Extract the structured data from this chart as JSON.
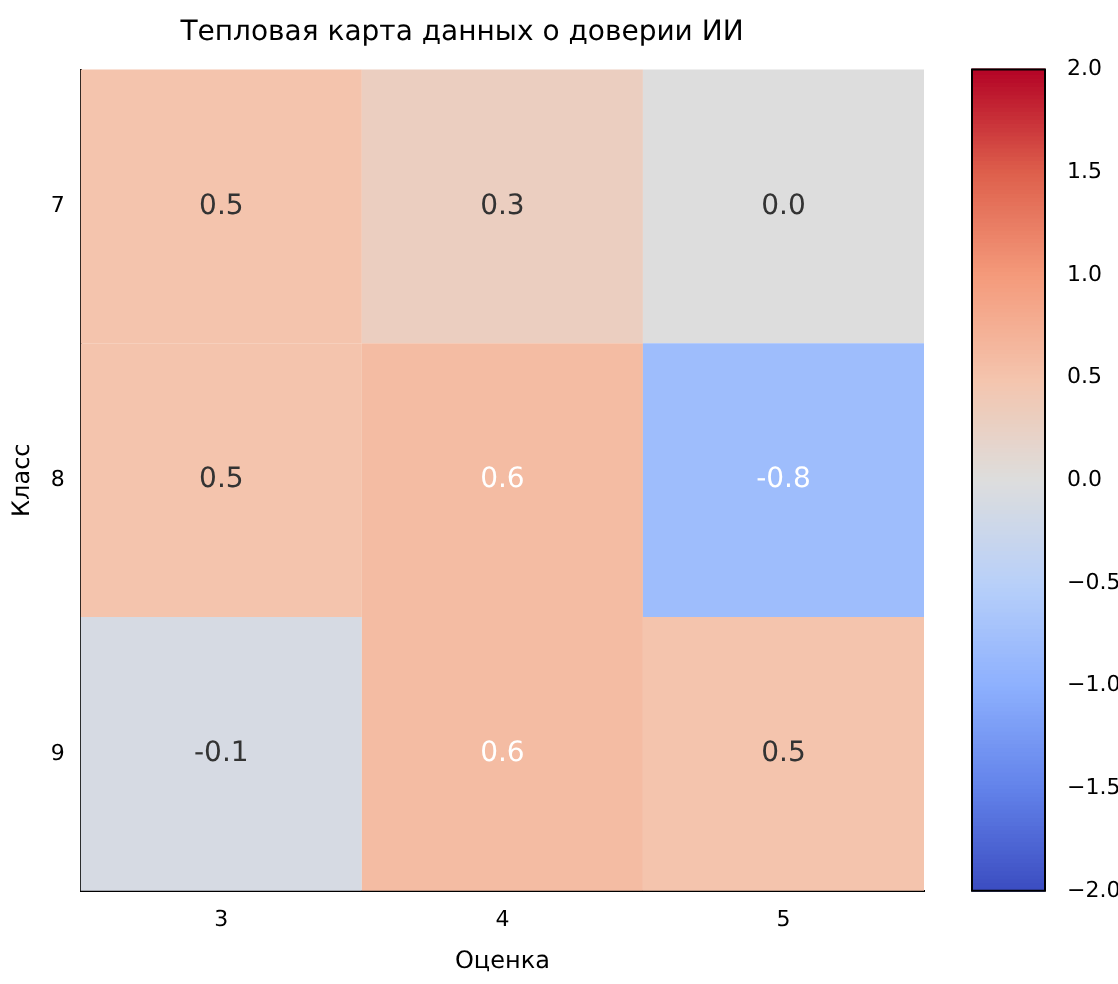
{
  "chart_data": {
    "type": "heatmap",
    "title": "Тепловая карта данных о доверии ИИ",
    "xlabel": "Оценка",
    "ylabel": "Класс",
    "categories": [
      "3",
      "4",
      "5"
    ],
    "y_categories": [
      "7",
      "8",
      "9"
    ],
    "cells": [
      [
        0.5,
        0.3,
        0.0
      ],
      [
        0.5,
        0.6,
        -0.8
      ],
      [
        -0.1,
        0.6,
        0.5
      ]
    ],
    "cell_labels": [
      [
        "0.5",
        "0.3",
        "0.0"
      ],
      [
        "0.5",
        "0.6",
        "-0.8"
      ],
      [
        "-0.1",
        "0.6",
        "0.5"
      ]
    ],
    "clim": [
      -2,
      2
    ],
    "cticks": [
      {
        "value": -2,
        "label": "−2.0"
      },
      {
        "value": -1.5,
        "label": "−1.5"
      },
      {
        "value": -1,
        "label": "−1.0"
      },
      {
        "value": -0.5,
        "label": "−0.5"
      },
      {
        "value": 0,
        "label": "0.0"
      },
      {
        "value": 0.5,
        "label": "0.5"
      },
      {
        "value": 1,
        "label": "1.0"
      },
      {
        "value": 1.5,
        "label": "1.5"
      },
      {
        "value": 2,
        "label": "2.0"
      }
    ],
    "grid": false,
    "legend": false
  }
}
